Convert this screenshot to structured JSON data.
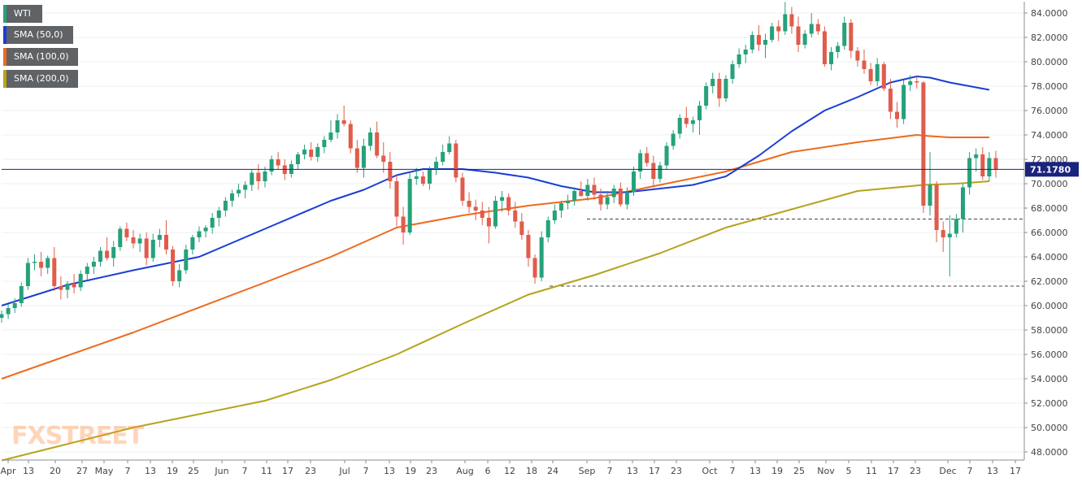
{
  "chart_data": {
    "type": "candlestick",
    "title": "",
    "xlabel": "",
    "ylabel": "",
    "ylim": [
      47,
      85
    ],
    "yticks": [
      "84.0000",
      "82.0000",
      "80.0000",
      "78.0000",
      "76.0000",
      "74.0000",
      "72.0000",
      "70.0000",
      "68.0000",
      "66.0000",
      "64.0000",
      "62.0000",
      "60.0000",
      "58.0000",
      "56.0000",
      "54.0000",
      "52.0000",
      "50.0000",
      "48.0000"
    ],
    "xticks": [
      "Apr",
      "13",
      "20",
      "27",
      "May",
      "7",
      "13",
      "19",
      "25",
      "Jun",
      "7",
      "11",
      "17",
      "23",
      "Jul",
      "7",
      "13",
      "19",
      "23",
      "Aug",
      "6",
      "12",
      "18",
      "24",
      "Sep",
      "7",
      "13",
      "17",
      "23",
      "Oct",
      "7",
      "13",
      "19",
      "25",
      "Nov",
      "5",
      "11",
      "17",
      "23",
      "Dec",
      "7",
      "13",
      "17"
    ],
    "last_price_label": "71.1780",
    "last_price": 71.178,
    "horizontal_levels": [
      67.1,
      61.6
    ],
    "legend": [
      {
        "name": "WTI",
        "color": "#26a17b"
      },
      {
        "name": "SMA (50,0)",
        "color": "#1a3ed6"
      },
      {
        "name": "SMA (100,0)",
        "color": "#ee6a1c"
      },
      {
        "name": "SMA (200,0)",
        "color": "#b4a41a"
      }
    ],
    "colors": {
      "up": "#26a17b",
      "down": "#e05c4b",
      "sma50": "#1a3ed6",
      "sma100": "#ee6a1c",
      "sma200": "#b4a41a",
      "price_line": "#1a237e"
    },
    "watermark": "FXSTREET",
    "candles": [
      [
        59.0,
        59.6,
        58.6,
        59.3
      ],
      [
        59.3,
        60.1,
        58.9,
        59.8
      ],
      [
        59.8,
        60.6,
        59.4,
        60.2
      ],
      [
        60.2,
        61.9,
        59.9,
        61.6
      ],
      [
        61.6,
        63.9,
        61.3,
        63.5
      ],
      [
        63.5,
        64.2,
        62.9,
        63.6
      ],
      [
        63.6,
        64.4,
        62.4,
        63.1
      ],
      [
        63.1,
        64.1,
        62.6,
        63.9
      ],
      [
        63.9,
        64.8,
        61.2,
        61.6
      ],
      [
        61.6,
        62.4,
        60.5,
        61.3
      ],
      [
        61.3,
        62.0,
        60.6,
        61.8
      ],
      [
        61.8,
        62.6,
        61.0,
        61.5
      ],
      [
        61.5,
        62.9,
        61.2,
        62.6
      ],
      [
        62.6,
        63.5,
        62.1,
        63.2
      ],
      [
        63.2,
        64.0,
        62.6,
        63.6
      ],
      [
        63.6,
        64.8,
        63.2,
        64.5
      ],
      [
        64.5,
        65.6,
        63.7,
        63.9
      ],
      [
        63.9,
        65.3,
        63.2,
        64.8
      ],
      [
        64.8,
        66.5,
        64.5,
        66.3
      ],
      [
        66.3,
        66.8,
        65.3,
        65.6
      ],
      [
        65.6,
        66.2,
        64.7,
        65.1
      ],
      [
        65.1,
        65.9,
        64.4,
        65.5
      ],
      [
        65.5,
        66.0,
        63.3,
        63.9
      ],
      [
        63.9,
        65.9,
        63.6,
        65.4
      ],
      [
        65.4,
        66.3,
        64.8,
        65.8
      ],
      [
        65.8,
        67.0,
        64.2,
        64.6
      ],
      [
        64.6,
        64.9,
        61.6,
        62.0
      ],
      [
        62.0,
        63.4,
        61.5,
        62.9
      ],
      [
        62.9,
        65.0,
        62.6,
        64.6
      ],
      [
        64.6,
        65.8,
        64.2,
        65.6
      ],
      [
        65.6,
        66.5,
        65.2,
        66.1
      ],
      [
        66.1,
        66.6,
        65.6,
        66.4
      ],
      [
        66.4,
        67.6,
        65.9,
        67.2
      ],
      [
        67.2,
        68.1,
        66.5,
        67.8
      ],
      [
        67.8,
        68.9,
        67.3,
        68.6
      ],
      [
        68.6,
        69.5,
        68.1,
        69.2
      ],
      [
        69.2,
        70.0,
        68.9,
        69.5
      ],
      [
        69.5,
        70.2,
        68.8,
        69.9
      ],
      [
        69.9,
        71.2,
        69.4,
        70.9
      ],
      [
        70.9,
        71.6,
        69.5,
        70.2
      ],
      [
        70.2,
        71.4,
        69.7,
        71.0
      ],
      [
        71.0,
        72.3,
        70.7,
        72.0
      ],
      [
        72.0,
        72.6,
        71.2,
        71.5
      ],
      [
        71.5,
        72.0,
        70.3,
        70.8
      ],
      [
        70.8,
        71.9,
        70.5,
        71.6
      ],
      [
        71.6,
        72.6,
        71.2,
        72.4
      ],
      [
        72.4,
        73.2,
        72.0,
        72.8
      ],
      [
        72.8,
        73.4,
        71.9,
        72.2
      ],
      [
        72.2,
        73.3,
        71.8,
        73.0
      ],
      [
        73.0,
        73.9,
        72.5,
        73.6
      ],
      [
        73.6,
        75.2,
        73.4,
        74.2
      ],
      [
        74.2,
        75.7,
        73.7,
        75.2
      ],
      [
        75.2,
        76.4,
        74.7,
        74.9
      ],
      [
        74.9,
        75.2,
        72.5,
        72.9
      ],
      [
        72.9,
        73.6,
        70.9,
        71.3
      ],
      [
        71.3,
        73.7,
        70.5,
        73.1
      ],
      [
        73.1,
        74.6,
        72.7,
        74.2
      ],
      [
        74.2,
        75.1,
        72.1,
        72.3
      ],
      [
        72.3,
        73.4,
        70.9,
        71.8
      ],
      [
        71.8,
        72.6,
        69.6,
        70.2
      ],
      [
        70.2,
        70.7,
        66.5,
        67.3
      ],
      [
        67.3,
        68.1,
        65.0,
        66.0
      ],
      [
        66.0,
        70.9,
        65.8,
        70.4
      ],
      [
        70.4,
        71.3,
        69.9,
        70.6
      ],
      [
        70.6,
        71.0,
        69.8,
        70.0
      ],
      [
        70.0,
        71.4,
        69.5,
        71.2
      ],
      [
        71.2,
        72.2,
        70.7,
        71.8
      ],
      [
        71.8,
        73.2,
        71.5,
        72.6
      ],
      [
        72.6,
        73.9,
        72.4,
        73.3
      ],
      [
        73.3,
        73.6,
        70.1,
        70.5
      ],
      [
        70.5,
        70.9,
        68.2,
        68.6
      ],
      [
        68.6,
        69.3,
        67.6,
        68.1
      ],
      [
        68.1,
        68.7,
        67.0,
        67.8
      ],
      [
        67.8,
        68.5,
        66.6,
        67.2
      ],
      [
        67.2,
        68.1,
        65.1,
        66.5
      ],
      [
        66.5,
        69.0,
        66.3,
        68.6
      ],
      [
        68.6,
        69.4,
        67.7,
        68.9
      ],
      [
        68.9,
        69.2,
        67.4,
        67.8
      ],
      [
        67.8,
        68.5,
        66.4,
        66.9
      ],
      [
        66.9,
        67.6,
        65.4,
        65.8
      ],
      [
        65.8,
        66.2,
        63.2,
        63.9
      ],
      [
        63.9,
        64.2,
        61.8,
        62.3
      ],
      [
        62.3,
        66.1,
        62.0,
        65.6
      ],
      [
        65.6,
        67.3,
        65.2,
        67.0
      ],
      [
        67.0,
        68.3,
        66.7,
        67.8
      ],
      [
        67.8,
        68.6,
        67.2,
        68.4
      ],
      [
        68.4,
        69.1,
        67.9,
        68.6
      ],
      [
        68.6,
        69.7,
        68.2,
        69.4
      ],
      [
        69.4,
        70.2,
        68.9,
        69.0
      ],
      [
        69.0,
        70.4,
        68.6,
        69.9
      ],
      [
        69.9,
        70.5,
        68.7,
        69.1
      ],
      [
        69.1,
        69.6,
        67.8,
        68.3
      ],
      [
        68.3,
        69.4,
        67.9,
        68.9
      ],
      [
        68.9,
        69.9,
        68.4,
        69.6
      ],
      [
        69.6,
        70.1,
        68.1,
        68.3
      ],
      [
        68.3,
        69.7,
        67.9,
        69.3
      ],
      [
        69.3,
        71.4,
        69.0,
        71.0
      ],
      [
        71.0,
        72.8,
        70.4,
        72.5
      ],
      [
        72.5,
        73.0,
        71.4,
        71.7
      ],
      [
        71.7,
        72.3,
        69.7,
        70.4
      ],
      [
        70.4,
        71.8,
        70.1,
        71.5
      ],
      [
        71.5,
        73.4,
        71.2,
        73.1
      ],
      [
        73.1,
        74.4,
        72.8,
        74.1
      ],
      [
        74.1,
        75.7,
        73.7,
        75.4
      ],
      [
        75.4,
        76.3,
        74.6,
        74.9
      ],
      [
        74.9,
        75.5,
        74.2,
        75.2
      ],
      [
        75.2,
        76.8,
        74.0,
        76.4
      ],
      [
        76.4,
        78.3,
        76.1,
        78.0
      ],
      [
        78.0,
        79.1,
        77.4,
        78.6
      ],
      [
        78.6,
        79.1,
        76.3,
        77.0
      ],
      [
        77.0,
        78.9,
        76.7,
        78.6
      ],
      [
        78.6,
        80.1,
        78.2,
        79.8
      ],
      [
        79.8,
        81.1,
        79.5,
        80.6
      ],
      [
        80.6,
        81.4,
        79.9,
        81.0
      ],
      [
        81.0,
        82.5,
        80.7,
        82.2
      ],
      [
        82.2,
        83.0,
        80.9,
        81.4
      ],
      [
        81.4,
        82.3,
        80.3,
        81.8
      ],
      [
        81.8,
        83.2,
        81.6,
        82.9
      ],
      [
        82.9,
        83.4,
        81.7,
        82.5
      ],
      [
        82.5,
        84.9,
        82.2,
        83.9
      ],
      [
        83.9,
        84.5,
        82.3,
        82.9
      ],
      [
        82.9,
        83.7,
        80.8,
        81.4
      ],
      [
        81.4,
        82.6,
        81.1,
        82.3
      ],
      [
        82.3,
        84.0,
        82.0,
        83.1
      ],
      [
        83.1,
        83.5,
        82.2,
        82.5
      ],
      [
        82.5,
        82.9,
        79.6,
        79.8
      ],
      [
        79.8,
        81.2,
        79.3,
        80.8
      ],
      [
        80.8,
        81.6,
        80.3,
        81.3
      ],
      [
        81.3,
        83.7,
        81.0,
        83.2
      ],
      [
        83.2,
        83.5,
        80.3,
        80.9
      ],
      [
        80.9,
        81.2,
        79.6,
        80.1
      ],
      [
        80.1,
        81.0,
        79.0,
        79.4
      ],
      [
        79.4,
        79.9,
        78.1,
        78.4
      ],
      [
        78.4,
        80.3,
        78.0,
        79.8
      ],
      [
        79.8,
        80.0,
        77.6,
        77.8
      ],
      [
        77.8,
        78.6,
        75.3,
        75.9
      ],
      [
        75.9,
        76.7,
        74.6,
        75.3
      ],
      [
        75.3,
        78.5,
        74.9,
        78.1
      ],
      [
        78.1,
        78.9,
        77.6,
        78.4
      ],
      [
        78.4,
        78.8,
        77.8,
        78.3
      ],
      [
        78.3,
        78.4,
        67.6,
        68.2
      ],
      [
        68.2,
        72.6,
        67.4,
        69.9
      ],
      [
        69.9,
        70.2,
        65.2,
        66.2
      ],
      [
        66.2,
        66.9,
        64.4,
        65.6
      ],
      [
        65.6,
        67.4,
        62.4,
        65.9
      ],
      [
        65.9,
        67.5,
        65.6,
        67.1
      ],
      [
        67.1,
        70.0,
        66.0,
        69.7
      ],
      [
        69.7,
        72.6,
        69.1,
        72.1
      ],
      [
        72.1,
        72.9,
        71.0,
        72.4
      ],
      [
        72.4,
        73.0,
        70.3,
        70.6
      ],
      [
        70.6,
        72.6,
        70.2,
        72.1
      ],
      [
        72.1,
        72.7,
        70.5,
        71.2
      ]
    ],
    "sma50": [
      [
        0,
        60.0
      ],
      [
        10,
        61.7
      ],
      [
        20,
        62.9
      ],
      [
        30,
        64.0
      ],
      [
        40,
        66.3
      ],
      [
        50,
        68.6
      ],
      [
        55,
        69.5
      ],
      [
        60,
        70.7
      ],
      [
        64,
        71.2
      ],
      [
        70,
        71.2
      ],
      [
        75,
        70.9
      ],
      [
        80,
        70.5
      ],
      [
        85,
        69.8
      ],
      [
        90,
        69.3
      ],
      [
        95,
        69.3
      ],
      [
        100,
        69.6
      ],
      [
        105,
        69.9
      ],
      [
        110,
        70.6
      ],
      [
        115,
        72.3
      ],
      [
        120,
        74.3
      ],
      [
        125,
        76.0
      ],
      [
        130,
        77.1
      ],
      [
        135,
        78.3
      ],
      [
        139,
        78.8
      ],
      [
        141,
        78.7
      ],
      [
        144,
        78.3
      ],
      [
        148,
        77.9
      ],
      [
        150,
        77.7
      ]
    ],
    "sma100": [
      [
        0,
        54.0
      ],
      [
        20,
        57.8
      ],
      [
        40,
        61.9
      ],
      [
        50,
        64.0
      ],
      [
        60,
        66.4
      ],
      [
        70,
        67.4
      ],
      [
        80,
        68.2
      ],
      [
        90,
        68.8
      ],
      [
        100,
        69.9
      ],
      [
        110,
        71.0
      ],
      [
        120,
        72.6
      ],
      [
        130,
        73.4
      ],
      [
        139,
        74.0
      ],
      [
        141,
        73.9
      ],
      [
        144,
        73.8
      ],
      [
        150,
        73.8
      ]
    ],
    "sma200": [
      [
        0,
        47.3
      ],
      [
        20,
        50.0
      ],
      [
        40,
        52.2
      ],
      [
        50,
        53.9
      ],
      [
        60,
        56.0
      ],
      [
        70,
        58.5
      ],
      [
        80,
        60.9
      ],
      [
        90,
        62.5
      ],
      [
        100,
        64.3
      ],
      [
        110,
        66.4
      ],
      [
        120,
        67.9
      ],
      [
        130,
        69.4
      ],
      [
        140,
        69.9
      ],
      [
        145,
        70.0
      ],
      [
        150,
        70.2
      ]
    ]
  }
}
